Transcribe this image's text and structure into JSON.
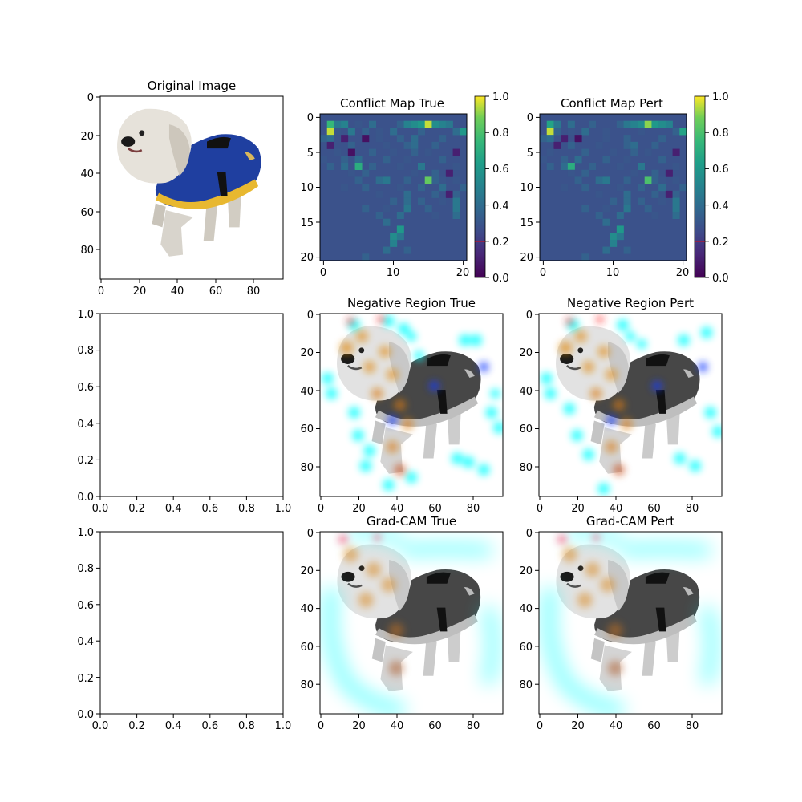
{
  "panels": [
    {
      "id": "original",
      "title": "Original Image",
      "kind": "image",
      "xticks": [
        0,
        20,
        40,
        60,
        80
      ],
      "yticks": [
        0,
        20,
        40,
        60,
        80
      ],
      "xlim": [
        0,
        96
      ],
      "ylim": [
        96,
        0
      ]
    },
    {
      "id": "conflict-true",
      "title": "Conflict Map True",
      "kind": "heatmap",
      "xticks": [
        0,
        10,
        20
      ],
      "yticks": [
        0,
        5,
        10,
        15,
        20
      ],
      "xlim": [
        -0.5,
        20.5
      ],
      "ylim": [
        20.5,
        -0.5
      ]
    },
    {
      "id": "conflict-pert",
      "title": "Conflict Map Pert",
      "kind": "heatmap",
      "xticks": [
        0,
        10,
        20
      ],
      "yticks": [
        0,
        5,
        10,
        15,
        20
      ],
      "xlim": [
        -0.5,
        20.5
      ],
      "ylim": [
        20.5,
        -0.5
      ]
    },
    {
      "id": "empty-1",
      "title": "",
      "kind": "empty",
      "xticks": [
        "0.0",
        "0.2",
        "0.4",
        "0.6",
        "0.8",
        "1.0"
      ],
      "yticks": [
        "0.0",
        "0.2",
        "0.4",
        "0.6",
        "0.8",
        "1.0"
      ],
      "xlim": [
        0,
        1
      ],
      "ylim": [
        0,
        1
      ]
    },
    {
      "id": "negative-true",
      "title": "Negative Region True",
      "kind": "image-overlay",
      "xticks": [
        0,
        20,
        40,
        60,
        80
      ],
      "yticks": [
        0,
        20,
        40,
        60,
        80
      ],
      "xlim": [
        0,
        96
      ],
      "ylim": [
        96,
        0
      ]
    },
    {
      "id": "negative-pert",
      "title": "Negative Region Pert",
      "kind": "image-overlay",
      "xticks": [
        0,
        20,
        40,
        60,
        80
      ],
      "yticks": [
        0,
        20,
        40,
        60,
        80
      ],
      "xlim": [
        0,
        96
      ],
      "ylim": [
        96,
        0
      ]
    },
    {
      "id": "empty-2",
      "title": "",
      "kind": "empty",
      "xticks": [
        "0.0",
        "0.2",
        "0.4",
        "0.6",
        "0.8",
        "1.0"
      ],
      "yticks": [
        "0.0",
        "0.2",
        "0.4",
        "0.6",
        "0.8",
        "1.0"
      ],
      "xlim": [
        0,
        1
      ],
      "ylim": [
        0,
        1
      ]
    },
    {
      "id": "gradcam-true",
      "title": "Grad-CAM True",
      "kind": "image-overlay",
      "xticks": [
        0,
        20,
        40,
        60,
        80
      ],
      "yticks": [
        0,
        20,
        40,
        60,
        80
      ],
      "xlim": [
        0,
        96
      ],
      "ylim": [
        96,
        0
      ]
    },
    {
      "id": "gradcam-pert",
      "title": "Grad-CAM Pert",
      "kind": "image-overlay",
      "xticks": [
        0,
        20,
        40,
        60,
        80
      ],
      "yticks": [
        0,
        20,
        40,
        60,
        80
      ],
      "xlim": [
        0,
        96
      ],
      "ylim": [
        96,
        0
      ]
    }
  ],
  "colorbar": {
    "ticks": [
      "0.0",
      "0.2",
      "0.4",
      "0.6",
      "0.8",
      "1.0"
    ],
    "range": [
      0,
      1
    ],
    "marker_value": 0.2,
    "marker_color": "#ff0000"
  },
  "colors": {
    "background": "#3b528b",
    "bright": "#fde725",
    "accent_overlay": "#00ffff"
  },
  "chart_data": [
    {
      "type": "heatmap",
      "title": "Conflict Map True",
      "rows": 21,
      "cols": 21,
      "background_value": 0.2,
      "cells": [
        [
          1,
          1,
          0.75
        ],
        [
          1,
          2,
          0.45
        ],
        [
          1,
          3,
          0.5
        ],
        [
          1,
          5,
          0.3
        ],
        [
          1,
          7,
          0.4
        ],
        [
          1,
          11,
          0.35
        ],
        [
          1,
          12,
          0.5
        ],
        [
          1,
          13,
          0.55
        ],
        [
          1,
          14,
          0.6
        ],
        [
          1,
          15,
          0.95
        ],
        [
          1,
          16,
          0.55
        ],
        [
          1,
          17,
          0.5
        ],
        [
          1,
          18,
          0.45
        ],
        [
          2,
          1,
          0.95
        ],
        [
          2,
          2,
          0.3
        ],
        [
          2,
          4,
          0.45
        ],
        [
          2,
          6,
          0.35
        ],
        [
          2,
          8,
          0.3
        ],
        [
          2,
          10,
          0.4
        ],
        [
          2,
          14,
          0.35
        ],
        [
          2,
          19,
          0.4
        ],
        [
          2,
          20,
          0.6
        ],
        [
          3,
          0,
          0.35
        ],
        [
          3,
          1,
          0.4
        ],
        [
          3,
          3,
          0.1
        ],
        [
          3,
          6,
          0.05
        ],
        [
          3,
          8,
          0.3
        ],
        [
          3,
          11,
          0.35
        ],
        [
          3,
          13,
          0.4
        ],
        [
          3,
          17,
          0.35
        ],
        [
          4,
          1,
          0.1
        ],
        [
          4,
          4,
          0.35
        ],
        [
          4,
          9,
          0.3
        ],
        [
          4,
          12,
          0.35
        ],
        [
          4,
          13,
          0.4
        ],
        [
          4,
          16,
          0.35
        ],
        [
          5,
          2,
          0.3
        ],
        [
          5,
          4,
          0.05
        ],
        [
          5,
          7,
          0.35
        ],
        [
          5,
          10,
          0.3
        ],
        [
          5,
          13,
          0.35
        ],
        [
          5,
          15,
          0.3
        ],
        [
          5,
          19,
          0.1
        ],
        [
          6,
          0,
          0.3
        ],
        [
          6,
          3,
          0.35
        ],
        [
          6,
          5,
          0.4
        ],
        [
          6,
          9,
          0.35
        ],
        [
          6,
          12,
          0.3
        ],
        [
          6,
          17,
          0.35
        ],
        [
          7,
          1,
          0.35
        ],
        [
          7,
          3,
          0.4
        ],
        [
          7,
          5,
          0.7
        ],
        [
          7,
          7,
          0.35
        ],
        [
          7,
          11,
          0.3
        ],
        [
          7,
          14,
          0.45
        ],
        [
          7,
          19,
          0.3
        ],
        [
          8,
          4,
          0.3
        ],
        [
          8,
          6,
          0.35
        ],
        [
          8,
          13,
          0.3
        ],
        [
          8,
          16,
          0.35
        ],
        [
          8,
          18,
          0.1
        ],
        [
          9,
          5,
          0.35
        ],
        [
          9,
          8,
          0.4
        ],
        [
          9,
          9,
          0.45
        ],
        [
          9,
          12,
          0.35
        ],
        [
          9,
          15,
          0.85
        ],
        [
          9,
          16,
          0.35
        ],
        [
          9,
          17,
          0.3
        ],
        [
          9,
          19,
          0.3
        ],
        [
          10,
          3,
          0.3
        ],
        [
          10,
          6,
          0.35
        ],
        [
          10,
          11,
          0.3
        ],
        [
          10,
          14,
          0.35
        ],
        [
          10,
          17,
          0.4
        ],
        [
          10,
          20,
          0.35
        ],
        [
          11,
          8,
          0.3
        ],
        [
          11,
          12,
          0.4
        ],
        [
          11,
          16,
          0.35
        ],
        [
          11,
          18,
          0.1
        ],
        [
          11,
          19,
          0.35
        ],
        [
          12,
          10,
          0.35
        ],
        [
          12,
          12,
          0.4
        ],
        [
          12,
          14,
          0.35
        ],
        [
          12,
          17,
          0.3
        ],
        [
          12,
          19,
          0.45
        ],
        [
          13,
          6,
          0.35
        ],
        [
          13,
          9,
          0.3
        ],
        [
          13,
          12,
          0.45
        ],
        [
          13,
          15,
          0.35
        ],
        [
          13,
          19,
          0.45
        ],
        [
          14,
          8,
          0.35
        ],
        [
          14,
          11,
          0.4
        ],
        [
          14,
          16,
          0.3
        ],
        [
          14,
          19,
          0.4
        ],
        [
          15,
          9,
          0.4
        ],
        [
          16,
          11,
          0.6
        ],
        [
          17,
          10,
          0.55
        ],
        [
          17,
          11,
          0.45
        ],
        [
          18,
          10,
          0.5
        ],
        [
          19,
          9,
          0.4
        ],
        [
          19,
          12,
          0.35
        ],
        [
          20,
          6,
          0.35
        ]
      ]
    },
    {
      "type": "heatmap",
      "title": "Conflict Map Pert",
      "rows": 21,
      "cols": 21,
      "background_value": 0.2,
      "cells": [
        [
          1,
          1,
          0.65
        ],
        [
          1,
          2,
          0.45
        ],
        [
          1,
          4,
          0.4
        ],
        [
          1,
          7,
          0.35
        ],
        [
          1,
          11,
          0.35
        ],
        [
          1,
          12,
          0.45
        ],
        [
          1,
          13,
          0.5
        ],
        [
          1,
          14,
          0.55
        ],
        [
          1,
          15,
          0.9
        ],
        [
          1,
          16,
          0.6
        ],
        [
          1,
          17,
          0.55
        ],
        [
          1,
          18,
          0.5
        ],
        [
          2,
          1,
          0.95
        ],
        [
          2,
          2,
          0.35
        ],
        [
          2,
          4,
          0.3
        ],
        [
          2,
          6,
          0.4
        ],
        [
          2,
          9,
          0.3
        ],
        [
          2,
          14,
          0.3
        ],
        [
          2,
          19,
          0.35
        ],
        [
          2,
          20,
          0.65
        ],
        [
          3,
          0,
          0.35
        ],
        [
          3,
          1,
          0.4
        ],
        [
          3,
          3,
          0.1
        ],
        [
          3,
          5,
          0.05
        ],
        [
          3,
          9,
          0.3
        ],
        [
          3,
          12,
          0.35
        ],
        [
          3,
          17,
          0.35
        ],
        [
          4,
          2,
          0.1
        ],
        [
          4,
          4,
          0.35
        ],
        [
          4,
          8,
          0.3
        ],
        [
          4,
          12,
          0.35
        ],
        [
          4,
          13,
          0.4
        ],
        [
          4,
          16,
          0.35
        ],
        [
          5,
          1,
          0.3
        ],
        [
          5,
          6,
          0.35
        ],
        [
          5,
          10,
          0.3
        ],
        [
          5,
          13,
          0.35
        ],
        [
          5,
          15,
          0.3
        ],
        [
          5,
          19,
          0.1
        ],
        [
          6,
          0,
          0.3
        ],
        [
          6,
          3,
          0.35
        ],
        [
          6,
          5,
          0.4
        ],
        [
          6,
          9,
          0.35
        ],
        [
          6,
          12,
          0.3
        ],
        [
          6,
          17,
          0.35
        ],
        [
          7,
          1,
          0.35
        ],
        [
          7,
          3,
          0.4
        ],
        [
          7,
          4,
          0.7
        ],
        [
          7,
          7,
          0.35
        ],
        [
          7,
          11,
          0.3
        ],
        [
          7,
          14,
          0.45
        ],
        [
          7,
          19,
          0.3
        ],
        [
          8,
          4,
          0.3
        ],
        [
          8,
          6,
          0.35
        ],
        [
          8,
          13,
          0.3
        ],
        [
          8,
          16,
          0.35
        ],
        [
          8,
          18,
          0.1
        ],
        [
          9,
          5,
          0.35
        ],
        [
          9,
          8,
          0.4
        ],
        [
          9,
          9,
          0.45
        ],
        [
          9,
          12,
          0.35
        ],
        [
          9,
          15,
          0.8
        ],
        [
          9,
          16,
          0.35
        ],
        [
          9,
          17,
          0.3
        ],
        [
          9,
          19,
          0.3
        ],
        [
          10,
          3,
          0.3
        ],
        [
          10,
          6,
          0.35
        ],
        [
          10,
          11,
          0.3
        ],
        [
          10,
          14,
          0.35
        ],
        [
          10,
          17,
          0.4
        ],
        [
          10,
          20,
          0.35
        ],
        [
          11,
          8,
          0.3
        ],
        [
          11,
          12,
          0.4
        ],
        [
          11,
          16,
          0.35
        ],
        [
          11,
          18,
          0.1
        ],
        [
          11,
          19,
          0.35
        ],
        [
          12,
          10,
          0.35
        ],
        [
          12,
          12,
          0.4
        ],
        [
          12,
          14,
          0.35
        ],
        [
          12,
          17,
          0.3
        ],
        [
          12,
          19,
          0.45
        ],
        [
          13,
          6,
          0.35
        ],
        [
          13,
          9,
          0.3
        ],
        [
          13,
          12,
          0.45
        ],
        [
          13,
          15,
          0.35
        ],
        [
          13,
          19,
          0.45
        ],
        [
          14,
          8,
          0.35
        ],
        [
          14,
          11,
          0.4
        ],
        [
          14,
          16,
          0.3
        ],
        [
          14,
          19,
          0.4
        ],
        [
          15,
          9,
          0.4
        ],
        [
          16,
          11,
          0.6
        ],
        [
          17,
          10,
          0.55
        ],
        [
          17,
          11,
          0.45
        ],
        [
          18,
          10,
          0.5
        ],
        [
          19,
          9,
          0.4
        ],
        [
          19,
          12,
          0.35
        ],
        [
          20,
          6,
          0.35
        ]
      ]
    }
  ]
}
